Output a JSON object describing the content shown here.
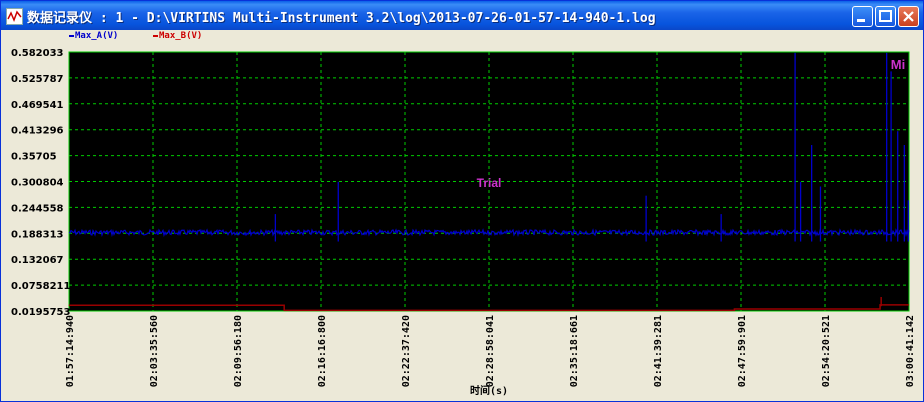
{
  "window": {
    "title": "数据记录仪 : 1 - D:\\VIRTINS Multi-Instrument 3.2\\log\\2013-07-26-01-57-14-940-1.log"
  },
  "legend": {
    "a_label": "Max_A(V)",
    "b_label": "Max_B(V)",
    "a_color": "#0000cc",
    "b_color": "#cc0000"
  },
  "chart_data": {
    "type": "line",
    "xlabel": "时间(s)",
    "ylabel": "",
    "ylim": [
      0.0195753,
      0.582033
    ],
    "y_ticks": [
      "0.582033",
      "0.525787",
      "0.469541",
      "0.413296",
      "0.35705",
      "0.300804",
      "0.244558",
      "0.188313",
      "0.132067",
      "0.0758211",
      "0.0195753"
    ],
    "x_ticks": [
      "01:57:14:940",
      "02:03:35:560",
      "02:09:56:180",
      "02:16:16:800",
      "02:22:37:420",
      "02:28:58:041",
      "02:35:18:661",
      "02:41:39:281",
      "02:47:59:901",
      "02:54:20:521",
      "03:00:41:142"
    ],
    "grid": true,
    "watermark": "Trial",
    "corner_badge": "Mi",
    "series": [
      {
        "name": "Max_A(V)",
        "color": "#0000cc",
        "baseline": 0.19,
        "spikes": [
          {
            "t": "02:12:50",
            "v": 0.23
          },
          {
            "t": "02:17:35",
            "v": 0.3
          },
          {
            "t": "02:40:50",
            "v": 0.27
          },
          {
            "t": "02:46:30",
            "v": 0.23
          },
          {
            "t": "02:52:05",
            "v": 0.58
          },
          {
            "t": "02:52:30",
            "v": 0.3
          },
          {
            "t": "02:53:20",
            "v": 0.38
          },
          {
            "t": "02:54:00",
            "v": 0.29
          },
          {
            "t": "02:59:00",
            "v": 0.58
          },
          {
            "t": "02:59:20",
            "v": 0.54
          },
          {
            "t": "02:59:50",
            "v": 0.41
          },
          {
            "t": "03:00:20",
            "v": 0.38
          },
          {
            "t": "03:00:38",
            "v": 0.26
          }
        ]
      },
      {
        "name": "Max_B(V)",
        "color": "#990000",
        "segments": [
          {
            "from": "01:57:14",
            "to": "02:13:30",
            "v": 0.032
          },
          {
            "from": "02:13:30",
            "to": "02:47:30",
            "v": 0.021
          },
          {
            "from": "02:47:30",
            "to": "02:58:30",
            "v": 0.024
          },
          {
            "from": "02:58:30",
            "to": "03:00:41",
            "v": 0.033
          }
        ],
        "spikes": [
          {
            "t": "02:58:35",
            "v": 0.05
          }
        ]
      }
    ]
  }
}
